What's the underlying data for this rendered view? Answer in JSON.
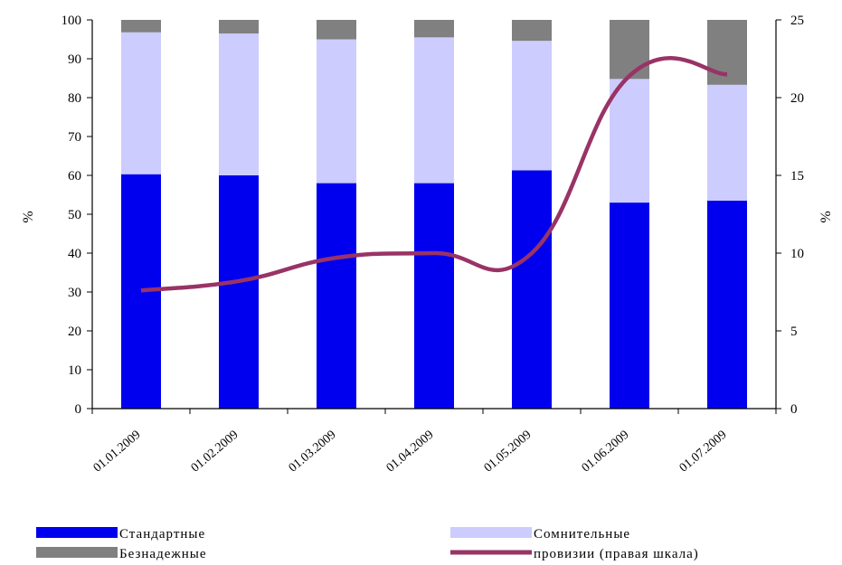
{
  "chart_data": {
    "type": "bar",
    "stacked": true,
    "categories": [
      "01.01.2009",
      "01.02.2009",
      "01.03.2009",
      "01.04.2009",
      "01.05.2009",
      "01.06.2009",
      "01.07.2009"
    ],
    "series": [
      {
        "name": "Стандартные",
        "color": "#0000ee",
        "axis": "left",
        "values": [
          60.3,
          60.0,
          58.0,
          58.0,
          61.3,
          53.0,
          53.5
        ]
      },
      {
        "name": "Сомнительные",
        "color": "#ccccff",
        "axis": "left",
        "values": [
          36.5,
          36.5,
          37.0,
          37.5,
          33.3,
          31.8,
          29.8
        ]
      },
      {
        "name": "Безнадежные",
        "color": "#808080",
        "axis": "left",
        "values": [
          3.2,
          3.5,
          5.0,
          4.5,
          5.4,
          15.2,
          16.7
        ]
      },
      {
        "name": "провизии (правая шкала)",
        "color": "#993366",
        "axis": "right",
        "type": "line",
        "values": [
          7.6,
          8.2,
          9.7,
          10.0,
          10.0,
          21.4,
          21.5
        ]
      }
    ],
    "ylabel": "%",
    "y2label": "%",
    "ylim": [
      0,
      100
    ],
    "y2lim": [
      0,
      25
    ],
    "yticks": [
      0,
      10,
      20,
      30,
      40,
      50,
      60,
      70,
      80,
      90,
      100
    ],
    "y2ticks": [
      0,
      5,
      10,
      15,
      20,
      25
    ],
    "grid": false,
    "legend_position": "bottom"
  }
}
